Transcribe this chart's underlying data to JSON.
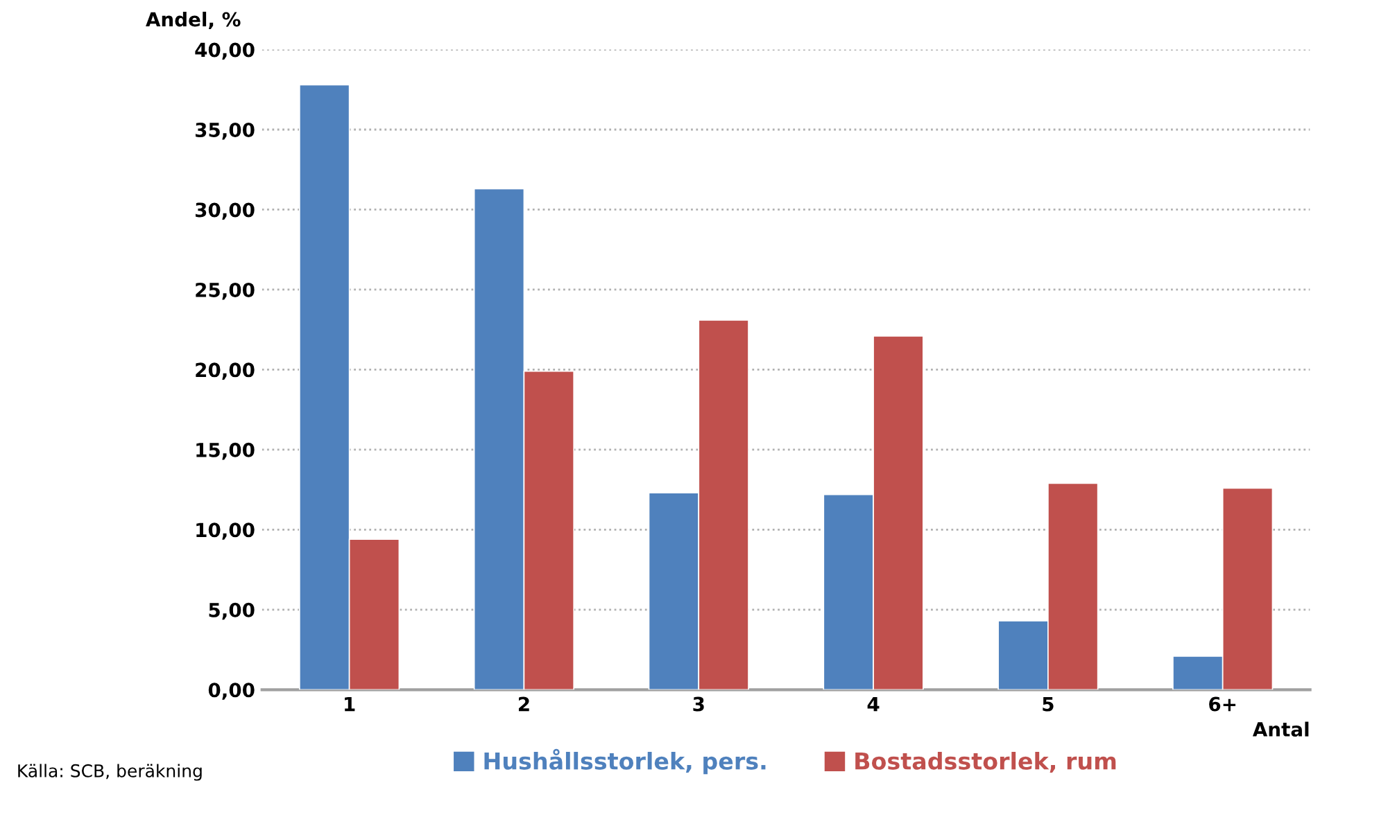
{
  "chart_data": {
    "type": "bar",
    "ylabel": "Andel, %",
    "xlabel": "Antal",
    "categories": [
      "1",
      "2",
      "3",
      "4",
      "5",
      "6+"
    ],
    "series": [
      {
        "name": "Hushållsstorlek, pers.",
        "color": "#4f81bd",
        "values": [
          37.8,
          31.3,
          12.3,
          12.2,
          4.3,
          2.1
        ]
      },
      {
        "name": "Bostadsstorlek, rum",
        "color": "#c0504d",
        "values": [
          9.4,
          19.9,
          23.1,
          22.1,
          12.9,
          12.6
        ]
      }
    ],
    "ylim": [
      0,
      40
    ],
    "yticks": [
      {
        "value": 0,
        "label": "0,00"
      },
      {
        "value": 5,
        "label": "5,00"
      },
      {
        "value": 10,
        "label": "10,00"
      },
      {
        "value": 15,
        "label": "15,00"
      },
      {
        "value": 20,
        "label": "20,00"
      },
      {
        "value": 25,
        "label": "25,00"
      },
      {
        "value": 30,
        "label": "30,00"
      },
      {
        "value": 35,
        "label": "35,00"
      },
      {
        "value": 40,
        "label": "40,00"
      }
    ],
    "grid": "y",
    "legend": "bottom",
    "annotations": [
      "Källa: SCB, beräkning"
    ]
  }
}
